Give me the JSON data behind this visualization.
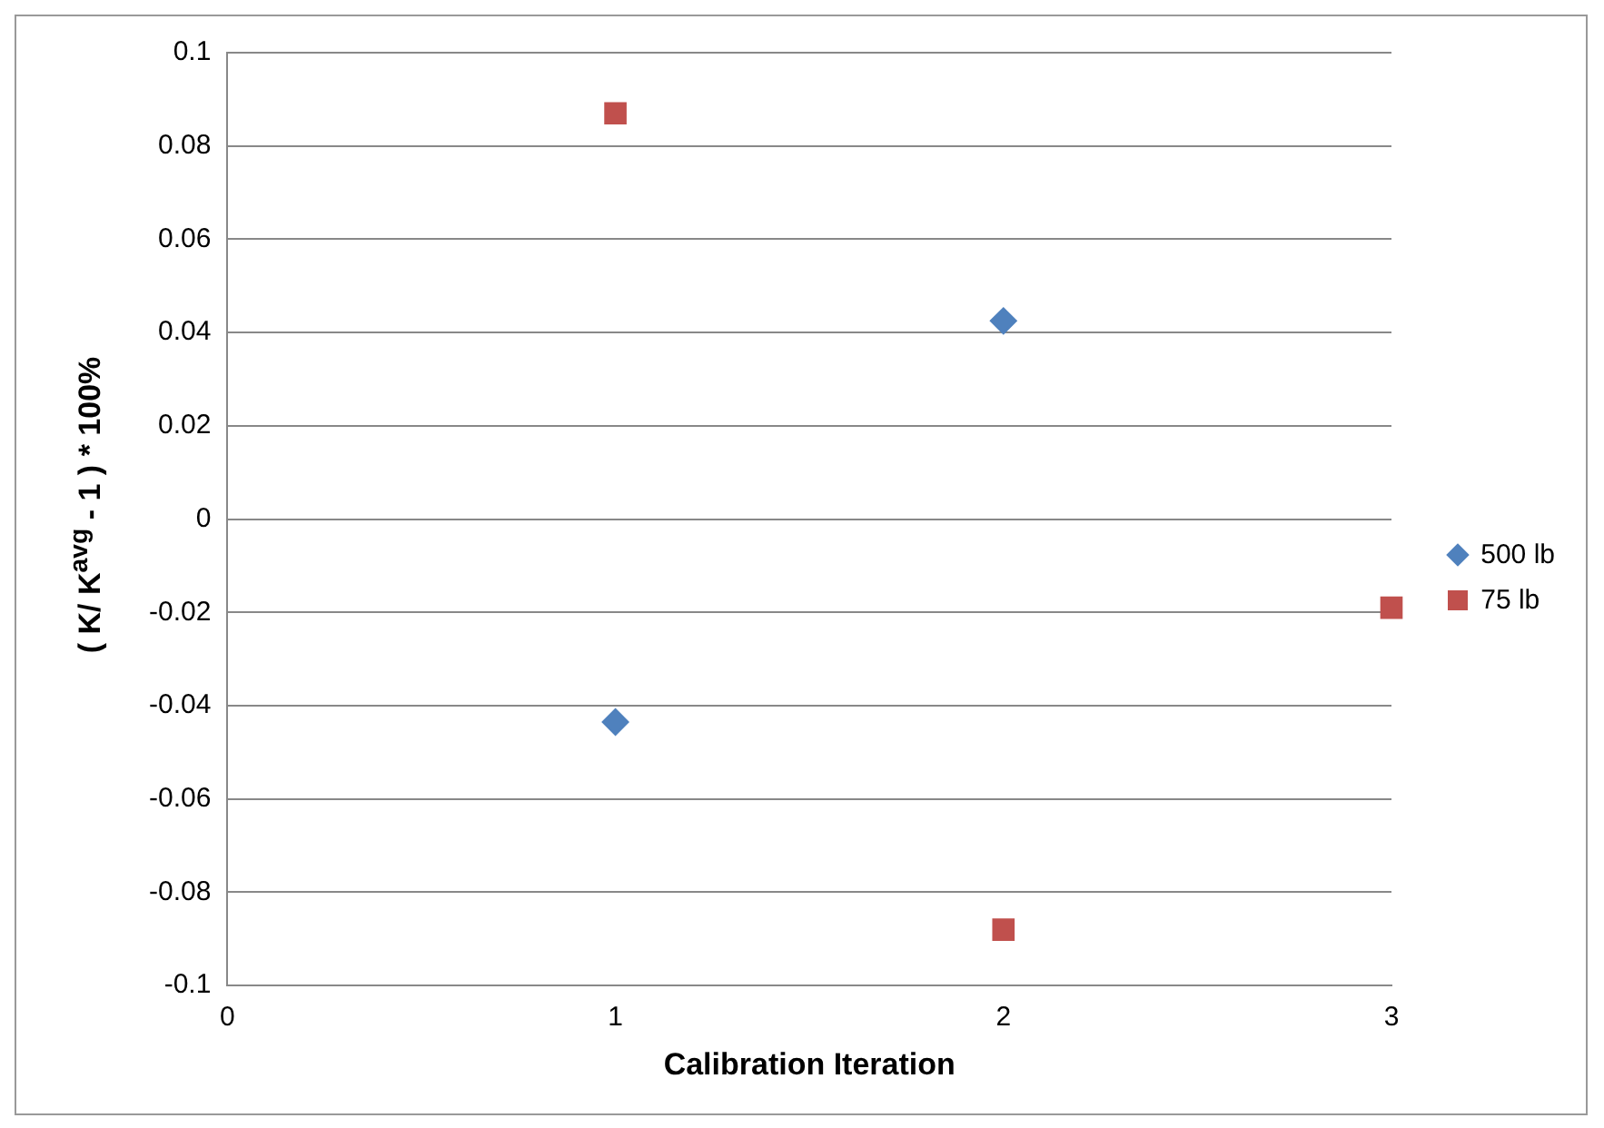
{
  "chart_data": {
    "type": "scatter",
    "xlabel": "Calibration Iteration",
    "ylabel": "( K/ K$^{avg}$ - 1 ) * 100%",
    "xlim": [
      0,
      3
    ],
    "xticks": [
      0,
      1,
      2,
      3
    ],
    "ylim": [
      -0.1,
      0.1
    ],
    "yticks": [
      -0.1,
      -0.08,
      -0.06,
      -0.04,
      -0.02,
      0,
      0.02,
      0.04,
      0.06,
      0.08,
      0.1
    ],
    "grid": "y",
    "legend": "right",
    "series": [
      {
        "name": "500 lb",
        "color": "#4f81bd",
        "marker": "diamond",
        "x": [
          1,
          2
        ],
        "values": [
          -0.0435,
          0.0425
        ]
      },
      {
        "name": "75 lb",
        "color": "#c0504d",
        "marker": "square",
        "x": [
          1,
          2,
          3
        ],
        "values": [
          0.087,
          -0.088,
          -0.019
        ]
      }
    ]
  }
}
